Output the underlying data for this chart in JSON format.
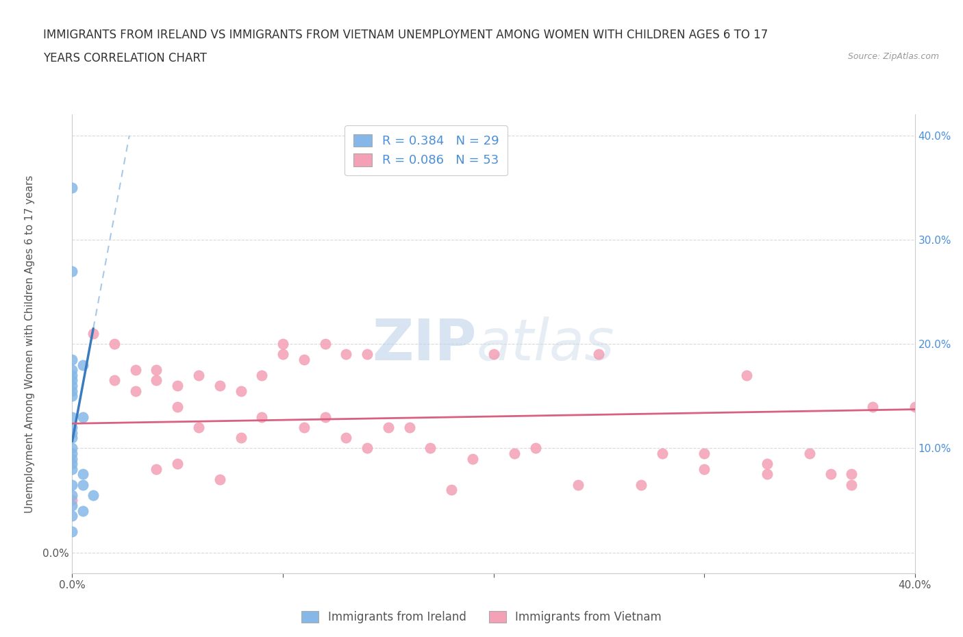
{
  "title_line1": "IMMIGRANTS FROM IRELAND VS IMMIGRANTS FROM VIETNAM UNEMPLOYMENT AMONG WOMEN WITH CHILDREN AGES 6 TO 17",
  "title_line2": "YEARS CORRELATION CHART",
  "source": "Source: ZipAtlas.com",
  "ylabel": "Unemployment Among Women with Children Ages 6 to 17 years",
  "xlim": [
    0.0,
    0.4
  ],
  "ylim": [
    -0.02,
    0.42
  ],
  "x_ticks": [
    0.0,
    0.1,
    0.2,
    0.3,
    0.4
  ],
  "x_tick_labels": [
    "0.0%",
    "",
    "",
    "",
    "40.0%"
  ],
  "y_ticks": [
    0.0,
    0.1,
    0.2,
    0.3,
    0.4
  ],
  "y_tick_labels_left": [
    "0.0%",
    "",
    "",
    "",
    ""
  ],
  "y_tick_labels_right": [
    "10.0%",
    "20.0%",
    "30.0%",
    "40.0%"
  ],
  "ireland_color": "#85b8e8",
  "vietnam_color": "#f4a0b5",
  "ireland_line_color": "#3a7abf",
  "ireland_dash_color": "#a8c8e8",
  "vietnam_line_color": "#d96080",
  "ireland_R": 0.384,
  "ireland_N": 29,
  "vietnam_R": 0.086,
  "vietnam_N": 53,
  "legend_label_ireland": "Immigrants from Ireland",
  "legend_label_vietnam": "Immigrants from Vietnam",
  "watermark_zip": "ZIP",
  "watermark_atlas": "atlas",
  "ireland_x": [
    0.0,
    0.0,
    0.0,
    0.0,
    0.0,
    0.0,
    0.0,
    0.0,
    0.0,
    0.0,
    0.0,
    0.0,
    0.0,
    0.0,
    0.0,
    0.0,
    0.0,
    0.0,
    0.0,
    0.0,
    0.0,
    0.0,
    0.0,
    0.005,
    0.005,
    0.005,
    0.005,
    0.005,
    0.01
  ],
  "ireland_y": [
    0.35,
    0.27,
    0.185,
    0.175,
    0.17,
    0.165,
    0.16,
    0.155,
    0.15,
    0.13,
    0.12,
    0.115,
    0.11,
    0.1,
    0.095,
    0.09,
    0.085,
    0.08,
    0.065,
    0.055,
    0.045,
    0.035,
    0.02,
    0.18,
    0.13,
    0.075,
    0.065,
    0.04,
    0.055
  ],
  "vietnam_x": [
    0.0,
    0.01,
    0.02,
    0.02,
    0.03,
    0.03,
    0.04,
    0.04,
    0.04,
    0.05,
    0.05,
    0.05,
    0.06,
    0.06,
    0.07,
    0.07,
    0.08,
    0.08,
    0.09,
    0.09,
    0.1,
    0.1,
    0.11,
    0.11,
    0.12,
    0.12,
    0.13,
    0.13,
    0.14,
    0.14,
    0.15,
    0.16,
    0.17,
    0.18,
    0.19,
    0.2,
    0.21,
    0.22,
    0.24,
    0.25,
    0.27,
    0.28,
    0.3,
    0.3,
    0.32,
    0.33,
    0.33,
    0.35,
    0.36,
    0.37,
    0.37,
    0.38,
    0.4
  ],
  "vietnam_y": [
    0.05,
    0.21,
    0.2,
    0.165,
    0.175,
    0.155,
    0.175,
    0.165,
    0.08,
    0.16,
    0.14,
    0.085,
    0.17,
    0.12,
    0.16,
    0.07,
    0.155,
    0.11,
    0.17,
    0.13,
    0.2,
    0.19,
    0.185,
    0.12,
    0.2,
    0.13,
    0.19,
    0.11,
    0.19,
    0.1,
    0.12,
    0.12,
    0.1,
    0.06,
    0.09,
    0.19,
    0.095,
    0.1,
    0.065,
    0.19,
    0.065,
    0.095,
    0.095,
    0.08,
    0.17,
    0.085,
    0.075,
    0.095,
    0.075,
    0.065,
    0.075,
    0.14,
    0.14
  ]
}
